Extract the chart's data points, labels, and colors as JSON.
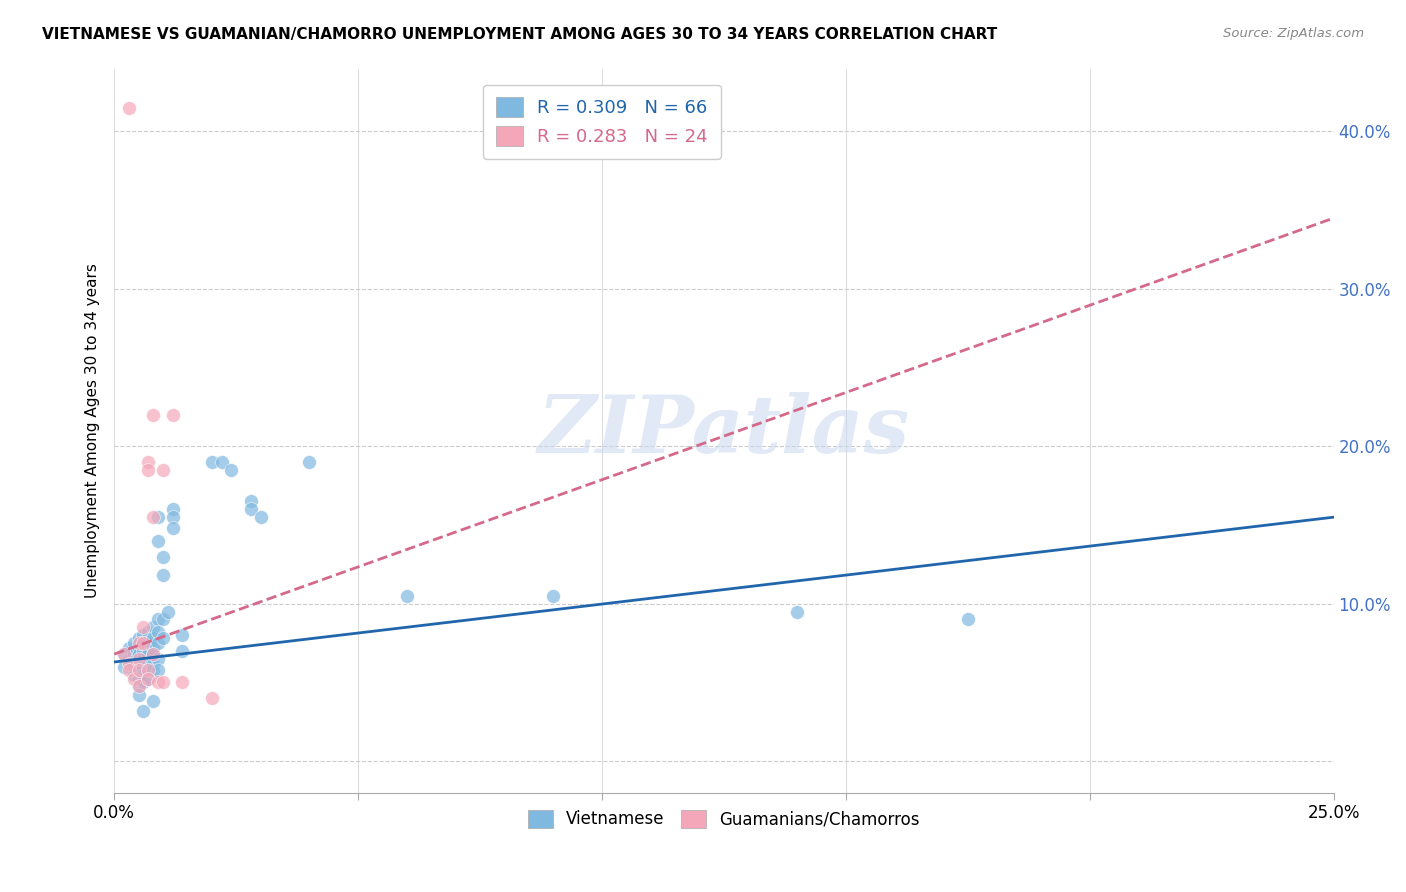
{
  "title": "VIETNAMESE VS GUAMANIAN/CHAMORRO UNEMPLOYMENT AMONG AGES 30 TO 34 YEARS CORRELATION CHART",
  "source": "Source: ZipAtlas.com",
  "ylabel": "Unemployment Among Ages 30 to 34 years",
  "xlim": [
    0.0,
    0.25
  ],
  "ylim": [
    -0.02,
    0.44
  ],
  "xticks": [
    0.0,
    0.05,
    0.1,
    0.15,
    0.2,
    0.25
  ],
  "xticklabels": [
    "0.0%",
    "",
    "",
    "",
    "",
    "25.0%"
  ],
  "yticks": [
    0.0,
    0.1,
    0.2,
    0.3,
    0.4
  ],
  "yticklabels": [
    "",
    "10.0%",
    "20.0%",
    "30.0%",
    "40.0%"
  ],
  "watermark": "ZIPatlas",
  "vietnamese_color": "#7fb9e0",
  "guamanian_color": "#f4a7b9",
  "vietnamese_line_color": "#2166ac",
  "guamanian_line_color": "#d4698a",
  "vietnamese_line": [
    [
      0.0,
      0.063
    ],
    [
      0.25,
      0.155
    ]
  ],
  "guamanian_line": [
    [
      0.0,
      0.068
    ],
    [
      0.25,
      0.345
    ]
  ],
  "vietnamese_scatter": [
    [
      0.002,
      0.068
    ],
    [
      0.002,
      0.06
    ],
    [
      0.003,
      0.072
    ],
    [
      0.003,
      0.065
    ],
    [
      0.004,
      0.075
    ],
    [
      0.004,
      0.068
    ],
    [
      0.004,
      0.06
    ],
    [
      0.004,
      0.055
    ],
    [
      0.005,
      0.078
    ],
    [
      0.005,
      0.072
    ],
    [
      0.005,
      0.068
    ],
    [
      0.005,
      0.062
    ],
    [
      0.005,
      0.058
    ],
    [
      0.005,
      0.052
    ],
    [
      0.005,
      0.048
    ],
    [
      0.005,
      0.042
    ],
    [
      0.006,
      0.08
    ],
    [
      0.006,
      0.075
    ],
    [
      0.006,
      0.07
    ],
    [
      0.006,
      0.065
    ],
    [
      0.006,
      0.06
    ],
    [
      0.006,
      0.055
    ],
    [
      0.006,
      0.05
    ],
    [
      0.007,
      0.082
    ],
    [
      0.007,
      0.076
    ],
    [
      0.007,
      0.072
    ],
    [
      0.007,
      0.068
    ],
    [
      0.007,
      0.062
    ],
    [
      0.007,
      0.058
    ],
    [
      0.007,
      0.052
    ],
    [
      0.008,
      0.085
    ],
    [
      0.008,
      0.078
    ],
    [
      0.008,
      0.072
    ],
    [
      0.008,
      0.068
    ],
    [
      0.008,
      0.062
    ],
    [
      0.008,
      0.058
    ],
    [
      0.009,
      0.155
    ],
    [
      0.009,
      0.14
    ],
    [
      0.009,
      0.09
    ],
    [
      0.009,
      0.082
    ],
    [
      0.009,
      0.075
    ],
    [
      0.009,
      0.065
    ],
    [
      0.009,
      0.058
    ],
    [
      0.01,
      0.13
    ],
    [
      0.01,
      0.118
    ],
    [
      0.01,
      0.09
    ],
    [
      0.01,
      0.078
    ],
    [
      0.011,
      0.095
    ],
    [
      0.012,
      0.16
    ],
    [
      0.012,
      0.155
    ],
    [
      0.012,
      0.148
    ],
    [
      0.014,
      0.07
    ],
    [
      0.014,
      0.08
    ],
    [
      0.02,
      0.19
    ],
    [
      0.022,
      0.19
    ],
    [
      0.024,
      0.185
    ],
    [
      0.028,
      0.165
    ],
    [
      0.028,
      0.16
    ],
    [
      0.03,
      0.155
    ],
    [
      0.04,
      0.19
    ],
    [
      0.06,
      0.105
    ],
    [
      0.09,
      0.105
    ],
    [
      0.14,
      0.095
    ],
    [
      0.175,
      0.09
    ],
    [
      0.008,
      0.038
    ],
    [
      0.006,
      0.032
    ]
  ],
  "guamanian_scatter": [
    [
      0.002,
      0.068
    ],
    [
      0.003,
      0.062
    ],
    [
      0.003,
      0.058
    ],
    [
      0.004,
      0.052
    ],
    [
      0.005,
      0.075
    ],
    [
      0.005,
      0.065
    ],
    [
      0.005,
      0.058
    ],
    [
      0.005,
      0.048
    ],
    [
      0.006,
      0.085
    ],
    [
      0.006,
      0.075
    ],
    [
      0.007,
      0.19
    ],
    [
      0.007,
      0.185
    ],
    [
      0.007,
      0.058
    ],
    [
      0.007,
      0.052
    ],
    [
      0.008,
      0.155
    ],
    [
      0.008,
      0.068
    ],
    [
      0.008,
      0.22
    ],
    [
      0.009,
      0.05
    ],
    [
      0.01,
      0.185
    ],
    [
      0.01,
      0.05
    ],
    [
      0.012,
      0.22
    ],
    [
      0.014,
      0.05
    ],
    [
      0.02,
      0.04
    ],
    [
      0.003,
      0.415
    ]
  ]
}
